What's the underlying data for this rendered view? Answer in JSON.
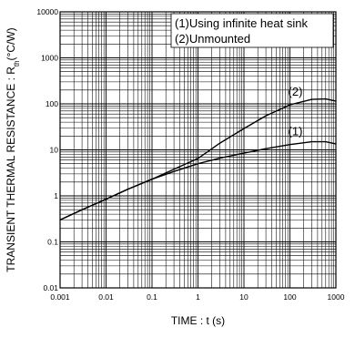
{
  "chart_data": {
    "type": "line",
    "title": "",
    "xlabel": "TIME : t (s)",
    "ylabel": "TRANSIENT THERMAL RESISTANCE : Rth(°C/W)",
    "ylabel_parts": {
      "before": "TRANSIENT THERMAL RESISTANCE : R",
      "subscript": "th",
      "after": "(°C/W)"
    },
    "x_scale": "log",
    "y_scale": "log",
    "xlim": [
      0.001,
      1000
    ],
    "ylim": [
      0.01,
      10000
    ],
    "grid": true,
    "x_ticks": [
      "0.001",
      "0.01",
      "0.1",
      "1",
      "10",
      "100",
      "1000"
    ],
    "y_ticks": [
      "0.01",
      "0.1",
      "1",
      "10",
      "100",
      "1000",
      "10000"
    ],
    "legend": {
      "placement": "top-right",
      "entries": [
        "(1)Using infinite heat sink",
        "(2)Unmounted"
      ]
    },
    "series": [
      {
        "label": "(1)",
        "x": [
          0.001,
          0.003,
          0.01,
          0.03,
          0.1,
          0.3,
          1,
          3,
          10,
          30,
          100,
          300,
          600,
          1000
        ],
        "y": [
          0.3,
          0.5,
          0.85,
          1.4,
          2.3,
          3.4,
          5.0,
          6.6,
          8.5,
          10.6,
          13.0,
          15.0,
          15.0,
          13.5
        ]
      },
      {
        "label": "(2)",
        "x": [
          0.001,
          0.003,
          0.01,
          0.03,
          0.1,
          0.3,
          1,
          3,
          10,
          30,
          100,
          300,
          600,
          1000
        ],
        "y": [
          0.3,
          0.5,
          0.85,
          1.4,
          2.3,
          3.8,
          6.5,
          14,
          29,
          55,
          95,
          125,
          128,
          115
        ]
      }
    ]
  }
}
